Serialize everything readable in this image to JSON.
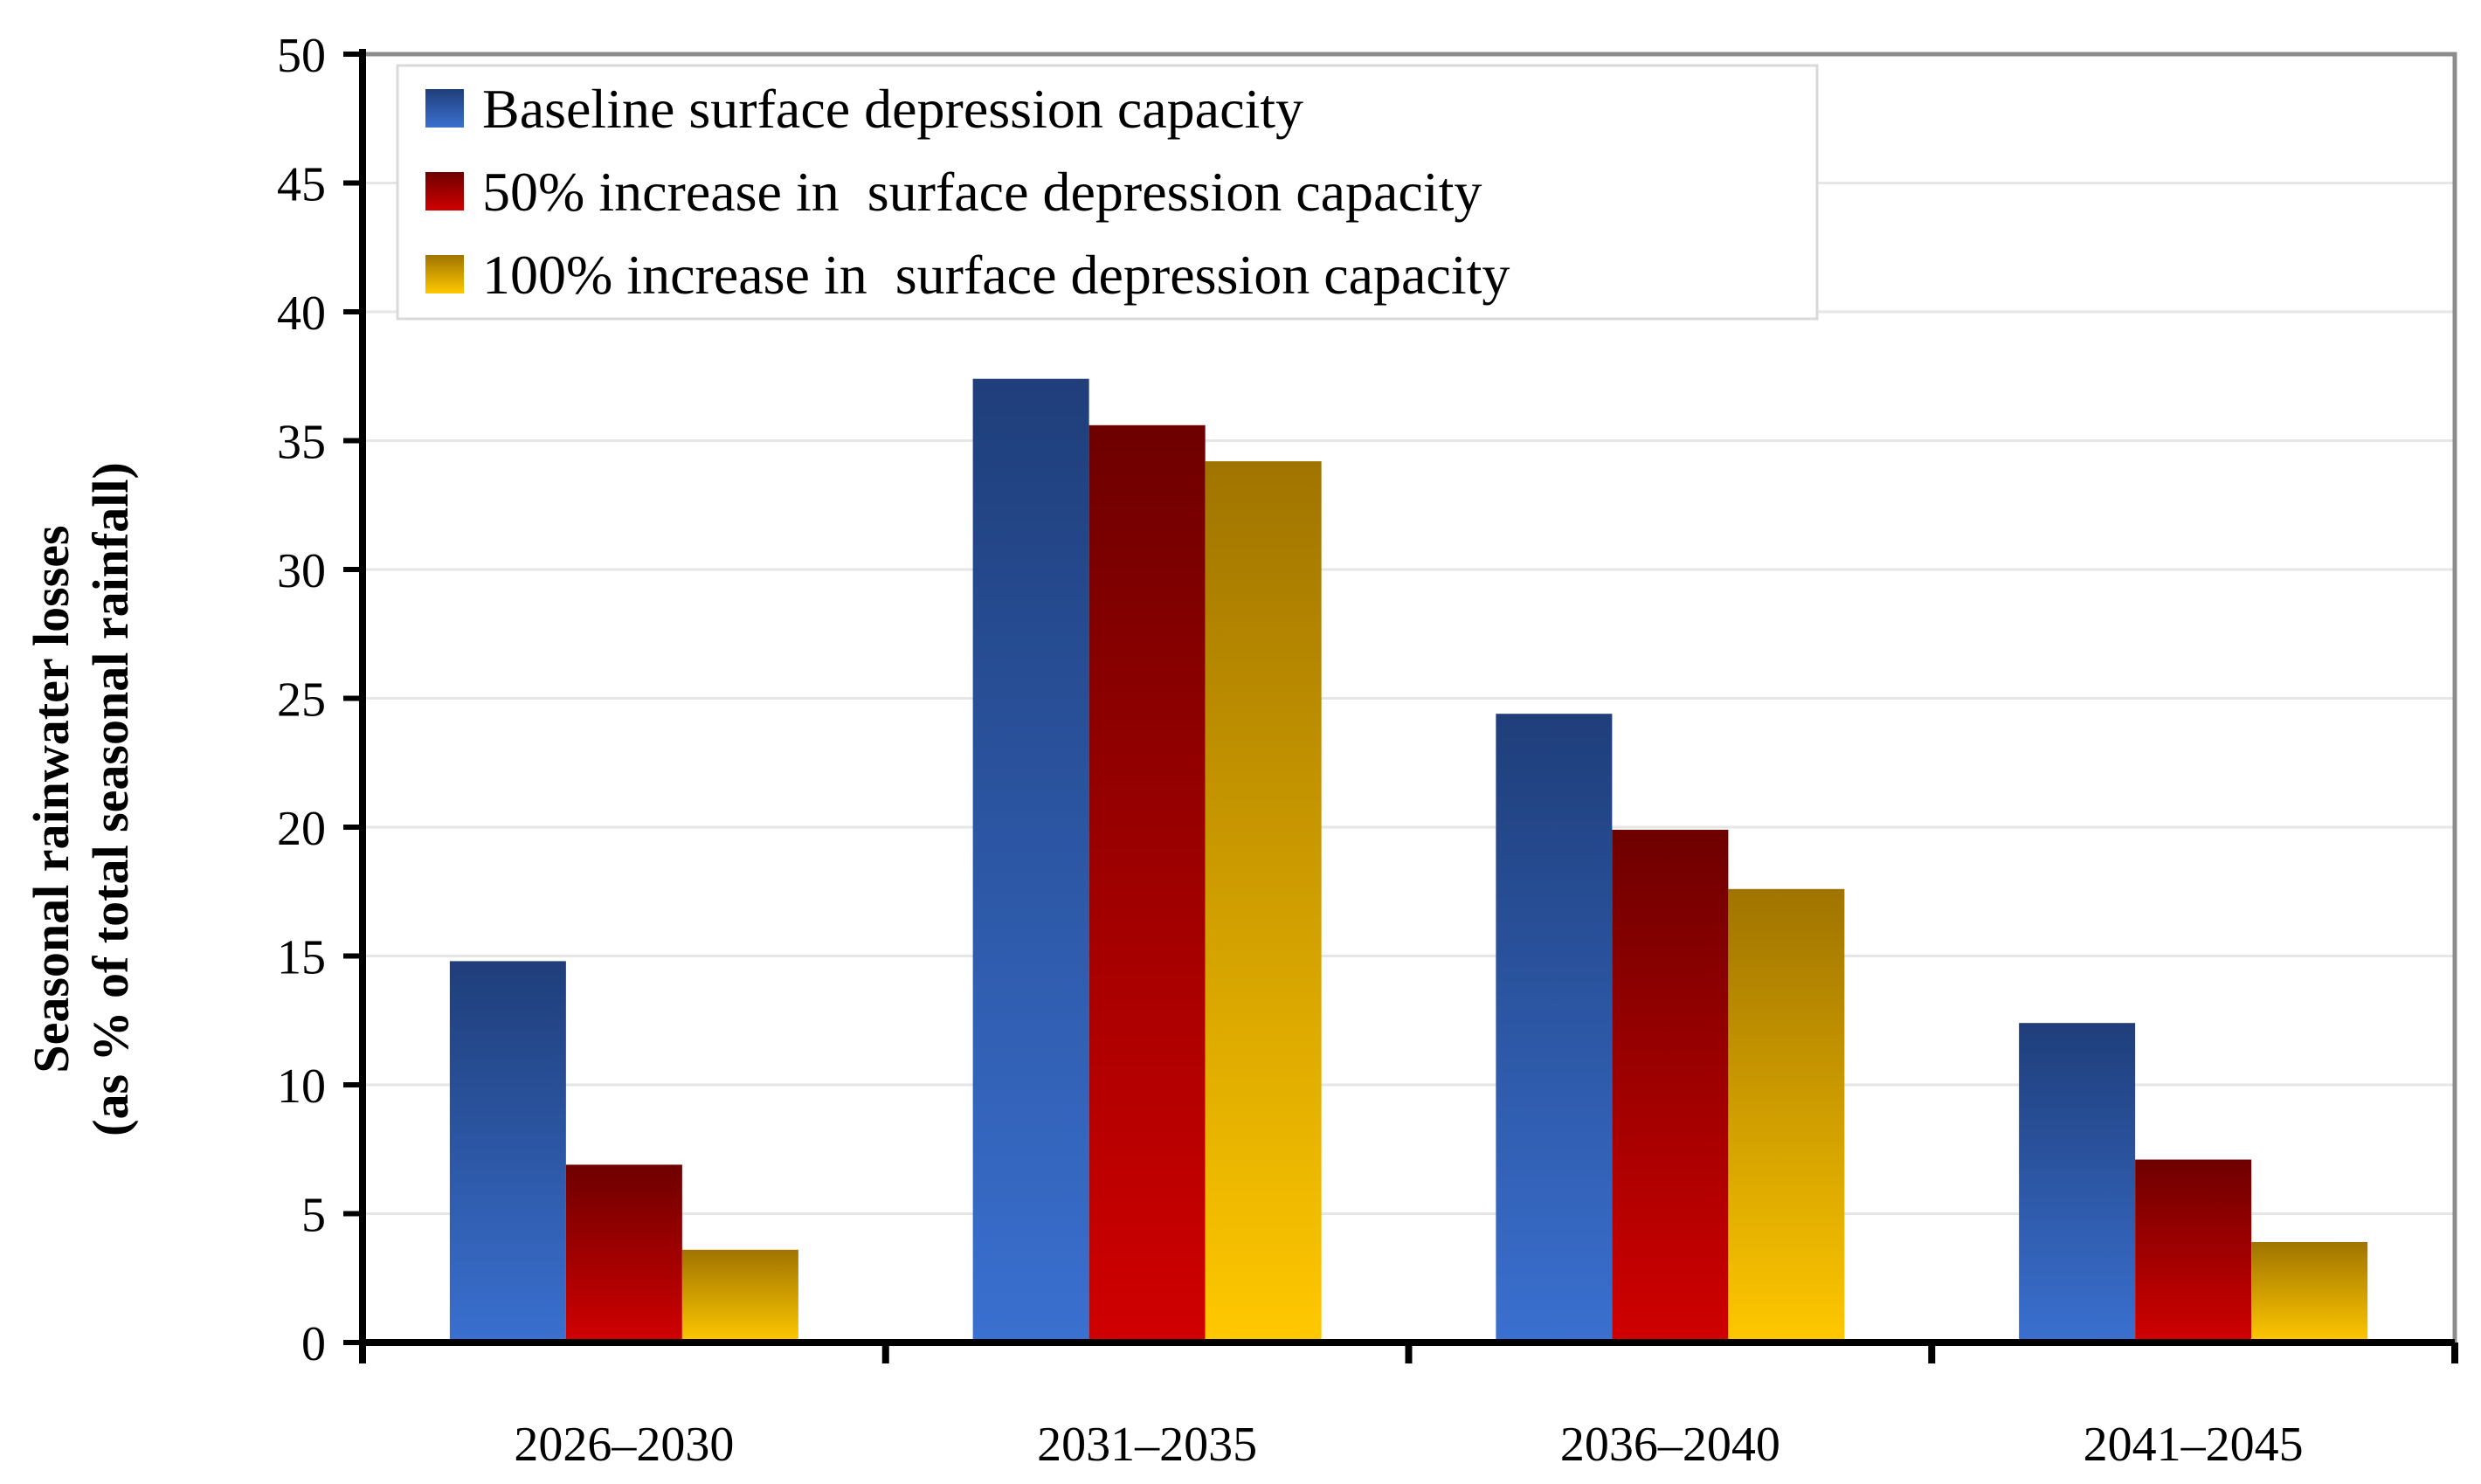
{
  "chart_data": {
    "type": "bar",
    "title": "",
    "xlabel": "",
    "ylabel": [
      "Seasonal rainwater losses",
      "(as % of total seasonal rainfall)"
    ],
    "ylim": [
      0,
      50
    ],
    "yticks": [
      0,
      5,
      10,
      15,
      20,
      25,
      30,
      35,
      40,
      45,
      50
    ],
    "grid": true,
    "legend_position": "top-left",
    "categories": [
      "2026–2030",
      "2031–2035",
      "2036–2040",
      "2041–2045"
    ],
    "series": [
      {
        "name": "Baseline surface depression capacity",
        "values": [
          14.8,
          37.4,
          24.4,
          12.4
        ],
        "color_top": "#1F3E7A",
        "color_bottom": "#3A70D0"
      },
      {
        "name": "50% increase in  surface depression capacity",
        "values": [
          6.9,
          35.6,
          19.9,
          7.1
        ],
        "color_top": "#6E0000",
        "color_bottom": "#D00000"
      },
      {
        "name": "100% increase in  surface depression capacity",
        "values": [
          3.6,
          34.2,
          17.6,
          3.9
        ],
        "color_top": "#A07400",
        "color_bottom": "#FFC800"
      }
    ]
  }
}
